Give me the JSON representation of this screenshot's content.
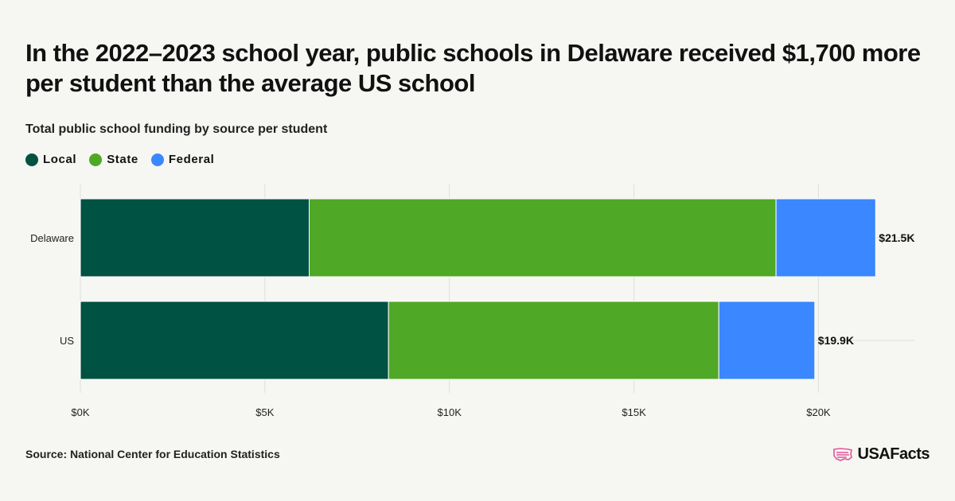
{
  "title": "In the 2022–2023 school year, public schools in Delaware received $1,700 more per student than the average US school",
  "subtitle": "Total public school funding by source per student",
  "source": "Source: National Center for Education Statistics",
  "brand": "USAFacts",
  "logo_icon": "us-map-flag-icon",
  "colors": {
    "Local": "#005243",
    "State": "#4fa826",
    "Federal": "#3a87ff",
    "grid": "#dedede",
    "background": "#f6f6f2"
  },
  "chart_data": {
    "type": "bar",
    "orientation": "horizontal",
    "stacked": true,
    "categories": [
      "Delaware",
      "US"
    ],
    "series": [
      {
        "name": "Local",
        "values": [
          6200,
          8350
        ]
      },
      {
        "name": "State",
        "values": [
          12650,
          8950
        ]
      },
      {
        "name": "Federal",
        "values": [
          2700,
          2600
        ]
      }
    ],
    "totals": [
      21550,
      19900
    ],
    "total_labels": [
      "$21.5K",
      "$19.9K"
    ],
    "x_ticks": [
      0,
      5000,
      10000,
      15000,
      20000
    ],
    "x_tick_labels": [
      "$0K",
      "$5K",
      "$10K",
      "$15K",
      "$20K"
    ],
    "xlim": [
      0,
      22600
    ],
    "grid": true,
    "legend_position": "top-left",
    "xlabel": "",
    "ylabel": ""
  }
}
